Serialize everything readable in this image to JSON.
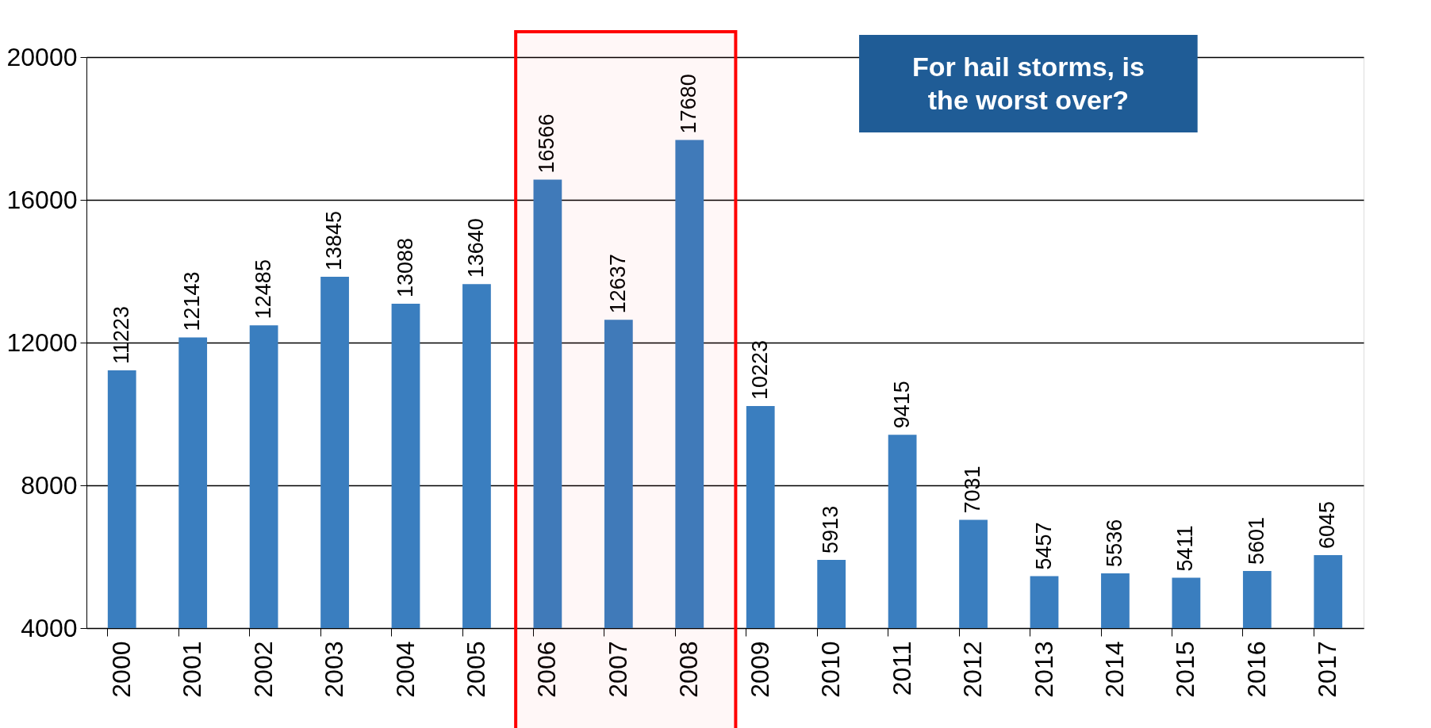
{
  "chart_data": {
    "type": "bar",
    "categories": [
      "2000",
      "2001",
      "2002",
      "2003",
      "2004",
      "2005",
      "2006",
      "2007",
      "2008",
      "2009",
      "2010",
      "2011",
      "2012",
      "2013",
      "2014",
      "2015",
      "2016",
      "2017"
    ],
    "values": [
      11223,
      12143,
      12485,
      13845,
      13088,
      13640,
      16566,
      12637,
      17680,
      10223,
      5913,
      9415,
      7031,
      5457,
      5536,
      5411,
      5601,
      6045
    ],
    "color": "#3a7ebf",
    "ylim": [
      4000,
      20000
    ],
    "yticks": [
      4000,
      8000,
      12000,
      16000,
      20000
    ],
    "grid": "y",
    "data_labels": true,
    "annotations": [
      "For hail storms, is the worst over?"
    ],
    "bands": [
      {
        "axis": "x",
        "from": "2006",
        "to": "2008",
        "color": "#ff0000"
      }
    ]
  }
}
